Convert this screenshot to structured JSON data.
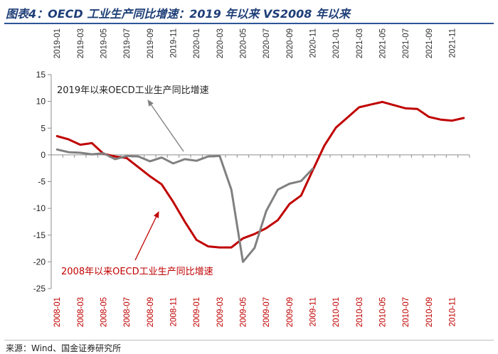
{
  "title": "图表4：OECD 工业生产同比增速：2019 年以来 VS2008 年以来",
  "source": "来源：Wind、国金证券研究所",
  "colors": {
    "series_2008": "#c00000",
    "series_2019": "#808080",
    "axis": "#888888",
    "title": "#1f3f78"
  },
  "chart_data": {
    "type": "line",
    "title": "OECD 工业生产同比增速：2019 年以来 VS2008 年以来",
    "ylim": [
      -25,
      15
    ],
    "yticks": [
      15,
      10,
      5,
      0,
      -5,
      -10,
      -15,
      -20,
      -25
    ],
    "top_axis_labels": [
      "2019-01",
      "2019-03",
      "2019-05",
      "2019-07",
      "2019-09",
      "2019-11",
      "2020-01",
      "2020-03",
      "2020-05",
      "2020-07",
      "2020-09",
      "2020-11",
      "2021-01",
      "2021-03",
      "2021-05",
      "2021-07",
      "2021-09",
      "2021-11"
    ],
    "bottom_axis_labels": [
      "2008-01",
      "2008-03",
      "2008-05",
      "2008-07",
      "2008-09",
      "2008-11",
      "2009-01",
      "2009-03",
      "2009-05",
      "2009-07",
      "2009-09",
      "2009-11",
      "2010-01",
      "2010-03",
      "2010-05",
      "2010-07",
      "2010-09",
      "2010-11"
    ],
    "series": [
      {
        "name": "2008年以来OECD工业生产同比增速",
        "color": "#c00000",
        "values": [
          3.5,
          2.9,
          1.9,
          2.2,
          0.2,
          -0.3,
          -0.6,
          -2.3,
          -4.0,
          -5.5,
          -8.8,
          -12.5,
          -15.9,
          -17.1,
          -17.3,
          -17.3,
          -15.6,
          -14.8,
          -13.7,
          -12.2,
          -9.2,
          -7.6,
          -2.9,
          1.7,
          5.1,
          7.0,
          8.9,
          9.4,
          9.9,
          9.3,
          8.7,
          8.6,
          7.1,
          6.6,
          6.4,
          6.9
        ]
      },
      {
        "name": "2019年以来OECD工业生产同比增速",
        "color": "#808080",
        "values": [
          1.0,
          0.5,
          0.4,
          0.1,
          0.3,
          -0.8,
          -0.2,
          -0.3,
          -1.2,
          -0.5,
          -1.6,
          -0.8,
          -1.1,
          -0.3,
          -0.2,
          -6.5,
          -20.0,
          -17.4,
          -10.5,
          -6.5,
          -5.4,
          -4.9,
          -2.6
        ]
      }
    ],
    "annotations": [
      {
        "text": "2019年以来OECD工业生产同比增速",
        "target_series": "2019年以来OECD工业生产同比增速"
      },
      {
        "text": "2008年以来OECD工业生产同比增速",
        "target_series": "2008年以来OECD工业生产同比增速"
      }
    ]
  }
}
